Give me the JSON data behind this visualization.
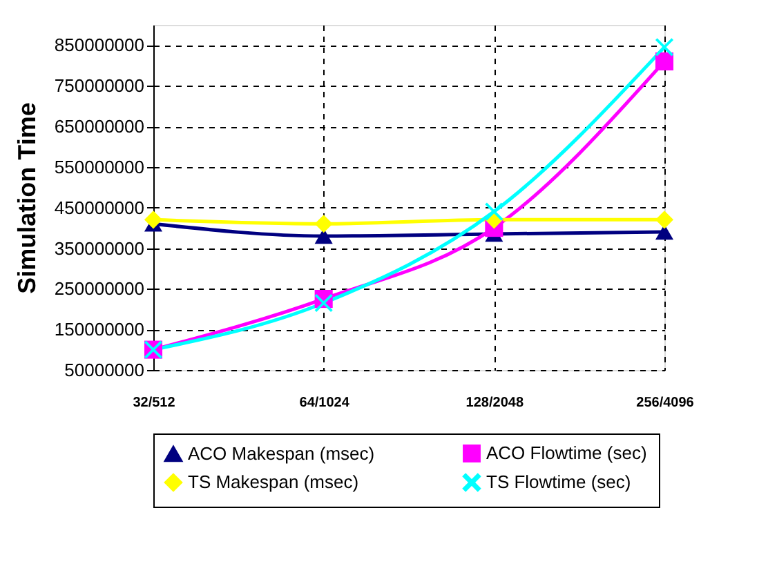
{
  "chart_data": {
    "type": "line",
    "ylabel": "Simulation Time",
    "categories": [
      "32/512",
      "64/1024",
      "128/2048",
      "256/4096"
    ],
    "series": [
      {
        "name": "ACO Makespan (msec)",
        "color": "#000080",
        "marker": "triangle",
        "values": [
          410000000,
          380000000,
          385000000,
          390000000
        ]
      },
      {
        "name": "ACO Flowtime (sec)",
        "color": "#ff00ff",
        "marker": "square",
        "values": [
          100000000,
          225000000,
          400000000,
          810000000
        ]
      },
      {
        "name": "TS Makespan (msec)",
        "color": "#ffff00",
        "marker": "diamond",
        "values": [
          420000000,
          410000000,
          420000000,
          420000000
        ]
      },
      {
        "name": "TS Flowtime (sec)",
        "color": "#00ffff",
        "marker": "cross",
        "values": [
          100000000,
          215000000,
          440000000,
          845000000
        ]
      }
    ],
    "ylim": [
      50000000,
      900000000
    ],
    "yticks": [
      50000000,
      150000000,
      250000000,
      350000000,
      450000000,
      550000000,
      650000000,
      750000000,
      850000000
    ],
    "grid": true,
    "legend": "bottom",
    "line_style": "solid"
  }
}
